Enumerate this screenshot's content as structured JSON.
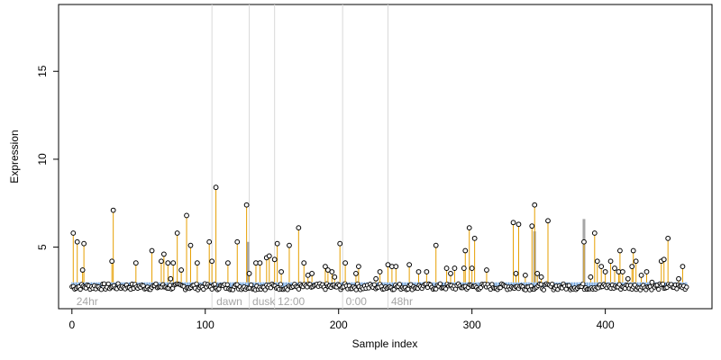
{
  "chart_data": {
    "type": "scatter",
    "title": "",
    "xlabel": "Sample index",
    "ylabel": "Expression",
    "xlim": [
      -10,
      480
    ],
    "ylim": [
      1.5,
      18.8
    ],
    "x_ticks": [
      0,
      100,
      200,
      300,
      400
    ],
    "y_ticks": [
      5,
      10,
      15
    ],
    "baseline": 3.0,
    "grid": false,
    "colors": {
      "stem_orange": "#e69f00",
      "stem_blue": "#6a9fdb",
      "stem_gray": "#a6a6a6",
      "point_edge": "#000000",
      "divider": "#d9d9d9",
      "group_label": "#a6a6a6"
    },
    "group_dividers": [
      105,
      133,
      152,
      203,
      237
    ],
    "group_labels": [
      {
        "x": 2,
        "text": "24hr"
      },
      {
        "x": 107,
        "text": "dawn"
      },
      {
        "x": 134,
        "text": "dusk"
      },
      {
        "x": 153,
        "text": "12:00"
      },
      {
        "x": 204,
        "text": "0:00"
      },
      {
        "x": 238,
        "text": "48hr"
      }
    ],
    "highlight_bars": [
      {
        "x": 132,
        "value": 5.3
      },
      {
        "x": 347,
        "value": 5.9
      },
      {
        "x": 384,
        "value": 6.6
      }
    ],
    "high_points": [
      {
        "x": 1,
        "y": 5.8
      },
      {
        "x": 4,
        "y": 5.3
      },
      {
        "x": 8,
        "y": 3.7
      },
      {
        "x": 9,
        "y": 5.2
      },
      {
        "x": 30,
        "y": 4.2
      },
      {
        "x": 31,
        "y": 7.1
      },
      {
        "x": 48,
        "y": 4.1
      },
      {
        "x": 60,
        "y": 4.8
      },
      {
        "x": 67,
        "y": 4.2
      },
      {
        "x": 69,
        "y": 4.6
      },
      {
        "x": 72,
        "y": 4.1
      },
      {
        "x": 74,
        "y": 3.2
      },
      {
        "x": 76,
        "y": 4.1
      },
      {
        "x": 79,
        "y": 5.8
      },
      {
        "x": 82,
        "y": 3.7
      },
      {
        "x": 86,
        "y": 6.8
      },
      {
        "x": 89,
        "y": 5.1
      },
      {
        "x": 94,
        "y": 4.1
      },
      {
        "x": 103,
        "y": 5.3
      },
      {
        "x": 105,
        "y": 4.2
      },
      {
        "x": 108,
        "y": 8.4
      },
      {
        "x": 117,
        "y": 4.1
      },
      {
        "x": 124,
        "y": 5.3
      },
      {
        "x": 131,
        "y": 7.4
      },
      {
        "x": 133,
        "y": 3.5
      },
      {
        "x": 138,
        "y": 4.1
      },
      {
        "x": 141,
        "y": 4.1
      },
      {
        "x": 146,
        "y": 4.4
      },
      {
        "x": 148,
        "y": 4.5
      },
      {
        "x": 152,
        "y": 4.3
      },
      {
        "x": 154,
        "y": 5.2
      },
      {
        "x": 157,
        "y": 3.6
      },
      {
        "x": 163,
        "y": 5.1
      },
      {
        "x": 170,
        "y": 6.1
      },
      {
        "x": 174,
        "y": 4.1
      },
      {
        "x": 177,
        "y": 3.4
      },
      {
        "x": 180,
        "y": 3.5
      },
      {
        "x": 190,
        "y": 3.9
      },
      {
        "x": 192,
        "y": 3.7
      },
      {
        "x": 195,
        "y": 3.6
      },
      {
        "x": 197,
        "y": 3.3
      },
      {
        "x": 201,
        "y": 5.2
      },
      {
        "x": 205,
        "y": 4.1
      },
      {
        "x": 213,
        "y": 3.5
      },
      {
        "x": 215,
        "y": 3.9
      },
      {
        "x": 228,
        "y": 3.2
      },
      {
        "x": 231,
        "y": 3.6
      },
      {
        "x": 237,
        "y": 4.0
      },
      {
        "x": 240,
        "y": 3.9
      },
      {
        "x": 243,
        "y": 3.9
      },
      {
        "x": 253,
        "y": 4.0
      },
      {
        "x": 260,
        "y": 3.6
      },
      {
        "x": 266,
        "y": 3.6
      },
      {
        "x": 273,
        "y": 5.1
      },
      {
        "x": 281,
        "y": 3.8
      },
      {
        "x": 284,
        "y": 3.5
      },
      {
        "x": 287,
        "y": 3.8
      },
      {
        "x": 294,
        "y": 3.8
      },
      {
        "x": 295,
        "y": 4.8
      },
      {
        "x": 298,
        "y": 6.1
      },
      {
        "x": 300,
        "y": 3.8
      },
      {
        "x": 302,
        "y": 5.5
      },
      {
        "x": 311,
        "y": 3.7
      },
      {
        "x": 331,
        "y": 6.4
      },
      {
        "x": 333,
        "y": 3.5
      },
      {
        "x": 335,
        "y": 6.3
      },
      {
        "x": 340,
        "y": 3.4
      },
      {
        "x": 345,
        "y": 6.2
      },
      {
        "x": 347,
        "y": 7.4
      },
      {
        "x": 349,
        "y": 3.5
      },
      {
        "x": 352,
        "y": 3.3
      },
      {
        "x": 357,
        "y": 6.5
      },
      {
        "x": 384,
        "y": 5.3
      },
      {
        "x": 389,
        "y": 3.3
      },
      {
        "x": 392,
        "y": 5.8
      },
      {
        "x": 394,
        "y": 4.2
      },
      {
        "x": 397,
        "y": 3.9
      },
      {
        "x": 400,
        "y": 3.6
      },
      {
        "x": 404,
        "y": 4.2
      },
      {
        "x": 407,
        "y": 3.8
      },
      {
        "x": 410,
        "y": 3.6
      },
      {
        "x": 411,
        "y": 4.8
      },
      {
        "x": 413,
        "y": 3.6
      },
      {
        "x": 417,
        "y": 3.2
      },
      {
        "x": 420,
        "y": 3.9
      },
      {
        "x": 421,
        "y": 4.8
      },
      {
        "x": 423,
        "y": 4.2
      },
      {
        "x": 427,
        "y": 3.4
      },
      {
        "x": 431,
        "y": 3.6
      },
      {
        "x": 435,
        "y": 3.0
      },
      {
        "x": 442,
        "y": 4.2
      },
      {
        "x": 444,
        "y": 4.3
      },
      {
        "x": 447,
        "y": 5.5
      },
      {
        "x": 455,
        "y": 3.2
      },
      {
        "x": 458,
        "y": 3.9
      }
    ],
    "low_band": {
      "x_start": 0,
      "x_end": 462,
      "y_center": 2.75,
      "spread": 0.18,
      "count": 440
    }
  }
}
